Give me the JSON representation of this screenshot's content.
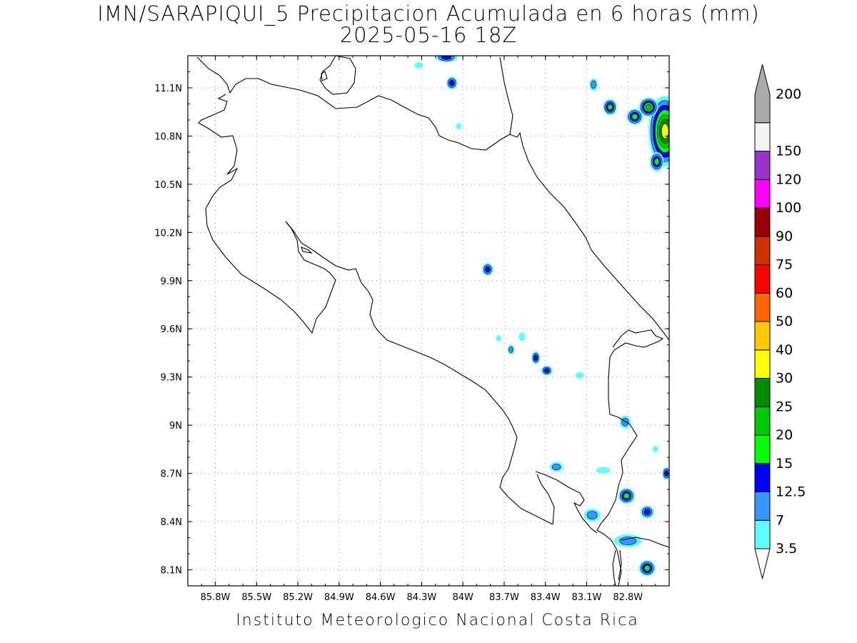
{
  "title_line1": "IMN/SARAPIQUI_5 Precipitacion Acumulada en 6 horas (mm)",
  "title_line2": "2025-05-16 18Z",
  "footer": "Instituto Meteorologico Nacional Costa Rica",
  "map": {
    "lon_range": [
      -86.0,
      -82.5
    ],
    "lat_range": [
      8.0,
      11.3
    ],
    "lat_ticks": [
      {
        "value": 11.1,
        "label": "11.1N"
      },
      {
        "value": 10.8,
        "label": "10.8N"
      },
      {
        "value": 10.5,
        "label": "10.5N"
      },
      {
        "value": 10.2,
        "label": "10.2N"
      },
      {
        "value": 9.9,
        "label": "9.9N"
      },
      {
        "value": 9.6,
        "label": "9.6N"
      },
      {
        "value": 9.3,
        "label": "9.3N"
      },
      {
        "value": 9.0,
        "label": "9N"
      },
      {
        "value": 8.7,
        "label": "8.7N"
      },
      {
        "value": 8.4,
        "label": "8.4N"
      },
      {
        "value": 8.1,
        "label": "8.1N"
      }
    ],
    "lon_ticks": [
      {
        "value": -85.8,
        "label": "85.8W"
      },
      {
        "value": -85.5,
        "label": "85.5W"
      },
      {
        "value": -85.2,
        "label": "85.2W"
      },
      {
        "value": -84.9,
        "label": "84.9W"
      },
      {
        "value": -84.6,
        "label": "84.6W"
      },
      {
        "value": -84.3,
        "label": "84.3W"
      },
      {
        "value": -84.0,
        "label": "84W"
      },
      {
        "value": -83.7,
        "label": "83.7W"
      },
      {
        "value": -83.4,
        "label": "83.4W"
      },
      {
        "value": -83.1,
        "label": "83.1W"
      },
      {
        "value": -82.8,
        "label": "82.8W"
      }
    ],
    "grid": true,
    "precip_cells": [
      {
        "lon": -82.53,
        "lat": 10.83,
        "level": 6,
        "shape": [
          0.12,
          0.22
        ]
      },
      {
        "lon": -82.65,
        "lat": 10.98,
        "level": 4,
        "shape": [
          0.07,
          0.06
        ]
      },
      {
        "lon": -82.75,
        "lat": 10.92,
        "level": 3,
        "shape": [
          0.06,
          0.05
        ]
      },
      {
        "lon": -82.59,
        "lat": 10.64,
        "level": 3,
        "shape": [
          0.05,
          0.06
        ]
      },
      {
        "lon": -82.93,
        "lat": 10.98,
        "level": 3,
        "shape": [
          0.05,
          0.05
        ]
      },
      {
        "lon": -83.05,
        "lat": 11.12,
        "level": 1,
        "shape": [
          0.03,
          0.04
        ]
      },
      {
        "lon": -84.08,
        "lat": 11.13,
        "level": 2,
        "shape": [
          0.04,
          0.04
        ]
      },
      {
        "lon": -84.12,
        "lat": 11.29,
        "level": 2,
        "shape": [
          0.08,
          0.03
        ]
      },
      {
        "lon": -84.32,
        "lat": 11.24,
        "level": 0,
        "shape": [
          0.03,
          0.02
        ]
      },
      {
        "lon": -84.03,
        "lat": 10.86,
        "level": 0,
        "shape": [
          0.02,
          0.02
        ]
      },
      {
        "lon": -83.82,
        "lat": 9.97,
        "level": 2,
        "shape": [
          0.04,
          0.04
        ]
      },
      {
        "lon": -83.74,
        "lat": 9.54,
        "level": 0,
        "shape": [
          0.02,
          0.02
        ]
      },
      {
        "lon": -83.65,
        "lat": 9.47,
        "level": 1,
        "shape": [
          0.025,
          0.03
        ]
      },
      {
        "lon": -83.57,
        "lat": 9.55,
        "level": 0,
        "shape": [
          0.025,
          0.025
        ]
      },
      {
        "lon": -83.47,
        "lat": 9.42,
        "level": 2,
        "shape": [
          0.03,
          0.04
        ]
      },
      {
        "lon": -83.39,
        "lat": 9.34,
        "level": 2,
        "shape": [
          0.04,
          0.03
        ]
      },
      {
        "lon": -83.15,
        "lat": 9.31,
        "level": 0,
        "shape": [
          0.03,
          0.02
        ]
      },
      {
        "lon": -82.82,
        "lat": 9.02,
        "level": 1,
        "shape": [
          0.04,
          0.04
        ]
      },
      {
        "lon": -83.32,
        "lat": 8.74,
        "level": 1,
        "shape": [
          0.05,
          0.03
        ]
      },
      {
        "lon": -82.98,
        "lat": 8.72,
        "level": 0,
        "shape": [
          0.05,
          0.02
        ]
      },
      {
        "lon": -82.81,
        "lat": 8.56,
        "level": 3,
        "shape": [
          0.06,
          0.05
        ]
      },
      {
        "lon": -82.66,
        "lat": 8.46,
        "level": 2,
        "shape": [
          0.05,
          0.04
        ]
      },
      {
        "lon": -83.06,
        "lat": 8.44,
        "level": 1,
        "shape": [
          0.06,
          0.04
        ]
      },
      {
        "lon": -82.8,
        "lat": 8.28,
        "level": 1,
        "shape": [
          0.1,
          0.04
        ]
      },
      {
        "lon": -82.66,
        "lat": 8.11,
        "level": 3,
        "shape": [
          0.06,
          0.05
        ]
      },
      {
        "lon": -82.52,
        "lat": 8.7,
        "level": 2,
        "shape": [
          0.03,
          0.04
        ]
      },
      {
        "lon": -82.6,
        "lat": 8.85,
        "level": 0,
        "shape": [
          0.02,
          0.02
        ]
      }
    ]
  },
  "colorbar": {
    "levels": [
      {
        "label": "3.5",
        "color": "#5ffeff"
      },
      {
        "label": "7",
        "color": "#3897ff"
      },
      {
        "label": "12.5",
        "color": "#0000ff"
      },
      {
        "label": "15",
        "color": "#00ff00"
      },
      {
        "label": "20",
        "color": "#00c800"
      },
      {
        "label": "25",
        "color": "#008c00"
      },
      {
        "label": "30",
        "color": "#ffff00"
      },
      {
        "label": "40",
        "color": "#ffc800"
      },
      {
        "label": "50",
        "color": "#ff6400"
      },
      {
        "label": "60",
        "color": "#ff0000"
      },
      {
        "label": "75",
        "color": "#cc3300"
      },
      {
        "label": "90",
        "color": "#990000"
      },
      {
        "label": "100",
        "color": "#ff00ff"
      },
      {
        "label": "120",
        "color": "#9933cc"
      },
      {
        "label": "150",
        "color": "#f4f4f4"
      },
      {
        "label": "200",
        "color": "#aaaaaa"
      }
    ]
  }
}
